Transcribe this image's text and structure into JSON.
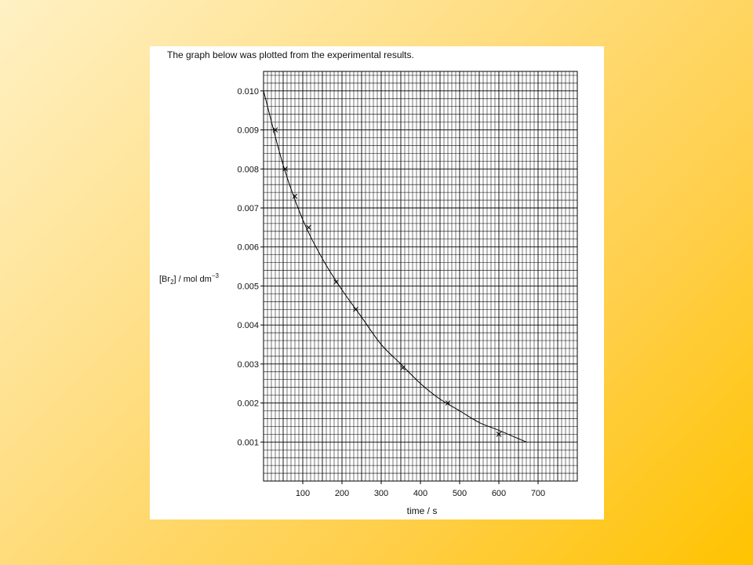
{
  "intro": "The graph below was plotted from the experimental results.",
  "chart_data": {
    "type": "line",
    "title": "",
    "xlabel": "time / s",
    "ylabel_main": "[Br",
    "ylabel_sub": "2",
    "ylabel_rest": "] / mol dm",
    "ylabel_sup": "−3",
    "xlim": [
      0,
      800
    ],
    "ylim": [
      0,
      0.0105
    ],
    "xticks": [
      100,
      200,
      300,
      400,
      500,
      600,
      700
    ],
    "xtick_labels": [
      "100",
      "200",
      "300",
      "400",
      "500",
      "600",
      "700"
    ],
    "yticks": [
      0.001,
      0.002,
      0.003,
      0.004,
      0.005,
      0.006,
      0.007,
      0.008,
      0.009,
      0.01
    ],
    "ytick_labels": [
      "0.001",
      "0.002",
      "0.003",
      "0.004",
      "0.005",
      "0.006",
      "0.007",
      "0.008",
      "0.009",
      "0.010"
    ],
    "grid": true,
    "series": [
      {
        "values_x": [
          0,
          50,
          100,
          150,
          200,
          250,
          300,
          350,
          400,
          450,
          500,
          550,
          600,
          670
        ],
        "values_y": [
          0.01,
          0.0081,
          0.0067,
          0.0057,
          0.0049,
          0.0042,
          0.0035,
          0.003,
          0.0025,
          0.0021,
          0.0018,
          0.0015,
          0.0013,
          0.001
        ]
      }
    ],
    "points": {
      "x": [
        30,
        55,
        80,
        115,
        185,
        235,
        355,
        470,
        600
      ],
      "y": [
        0.009,
        0.008,
        0.0073,
        0.0065,
        0.0051,
        0.0044,
        0.0029,
        0.002,
        0.0012
      ]
    },
    "line_color": "#000000",
    "grid_color": "#000000"
  }
}
